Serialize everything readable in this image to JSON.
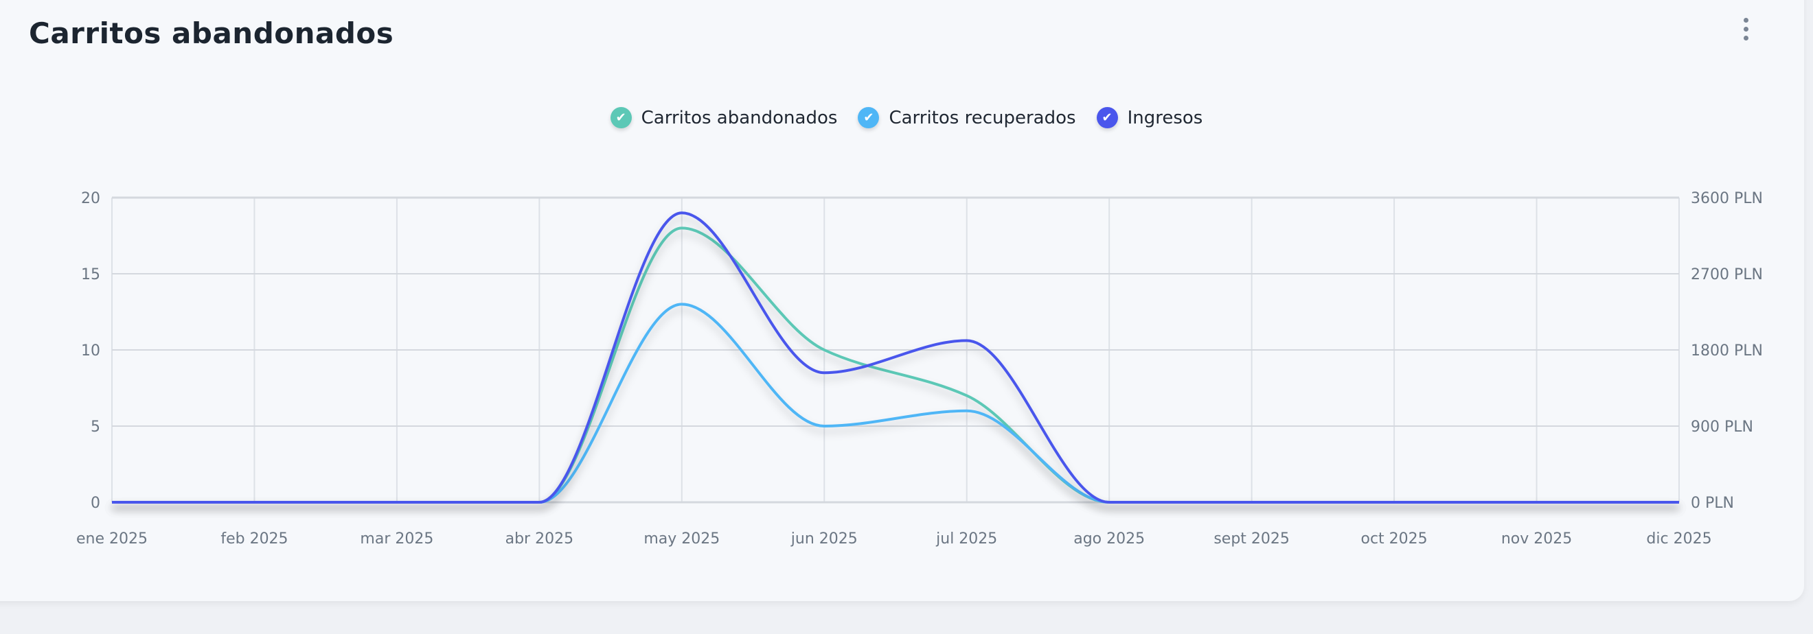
{
  "header": {
    "title": "Carritos abandonados",
    "menu_icon": "vertical-dots-icon"
  },
  "colors": {
    "abandonados": "#5cc8b6",
    "recuperados": "#4fb6f6",
    "ingresos": "#4a56ec"
  },
  "chart_data": {
    "type": "line",
    "title": "Carritos abandonados",
    "categories": [
      "ene 2025",
      "feb 2025",
      "mar 2025",
      "abr 2025",
      "may 2025",
      "jun 2025",
      "jul 2025",
      "ago 2025",
      "sept 2025",
      "oct 2025",
      "nov 2025",
      "dic 2025"
    ],
    "series": [
      {
        "name": "Carritos abandonados",
        "axis": "left",
        "values": [
          0,
          0,
          0,
          0,
          18,
          10,
          7,
          0,
          0,
          0,
          0,
          0
        ]
      },
      {
        "name": "Carritos recuperados",
        "axis": "left",
        "values": [
          0,
          0,
          0,
          0,
          13,
          5,
          6,
          0,
          0,
          0,
          0,
          0
        ]
      },
      {
        "name": "Ingresos",
        "axis": "right",
        "values": [
          0,
          0,
          0,
          0,
          3420,
          1530,
          1910,
          0,
          0,
          0,
          0,
          0
        ]
      }
    ],
    "y_left": {
      "ylim": [
        0,
        20
      ],
      "ticks": [
        "0",
        "5",
        "10",
        "15",
        "20"
      ]
    },
    "y_right": {
      "ylim": [
        0,
        3600
      ],
      "ticks": [
        "0 PLN",
        "900 PLN",
        "1800 PLN",
        "2700 PLN",
        "3600 PLN"
      ]
    },
    "legend": "top-center",
    "grid": true
  }
}
